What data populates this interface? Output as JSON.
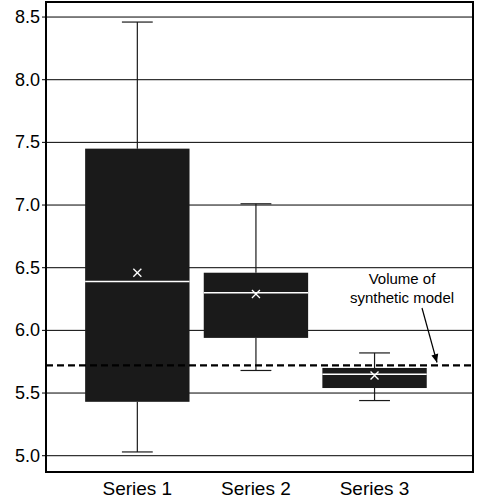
{
  "chart_data": {
    "type": "box",
    "categories": [
      "Series 1",
      "Series 2",
      "Series 3"
    ],
    "min": [
      5.03,
      5.68,
      5.44
    ],
    "q1": [
      5.43,
      5.94,
      5.54
    ],
    "median": [
      6.39,
      6.3,
      5.65
    ],
    "q3": [
      7.45,
      6.46,
      5.7
    ],
    "max": [
      8.46,
      7.01,
      5.82
    ],
    "mean": [
      6.46,
      6.29,
      5.64
    ],
    "color": "#1a1a1a",
    "ylim": [
      4.87,
      8.62
    ],
    "yticks": [
      {
        "value": 5,
        "label": "5.0"
      },
      {
        "value": 5.5,
        "label": "5.5"
      },
      {
        "value": 6,
        "label": "6.0"
      },
      {
        "value": 6.5,
        "label": "6.5"
      },
      {
        "value": 7,
        "label": "7.0"
      },
      {
        "value": 7.5,
        "label": "7.5"
      },
      {
        "value": 8,
        "label": "8.0"
      },
      {
        "value": 8.5,
        "label": "8.5"
      }
    ],
    "grid": true,
    "annotations": [
      {
        "text": "Volume of synthetic model",
        "y": 5.72,
        "line_style": "dashed"
      }
    ]
  }
}
